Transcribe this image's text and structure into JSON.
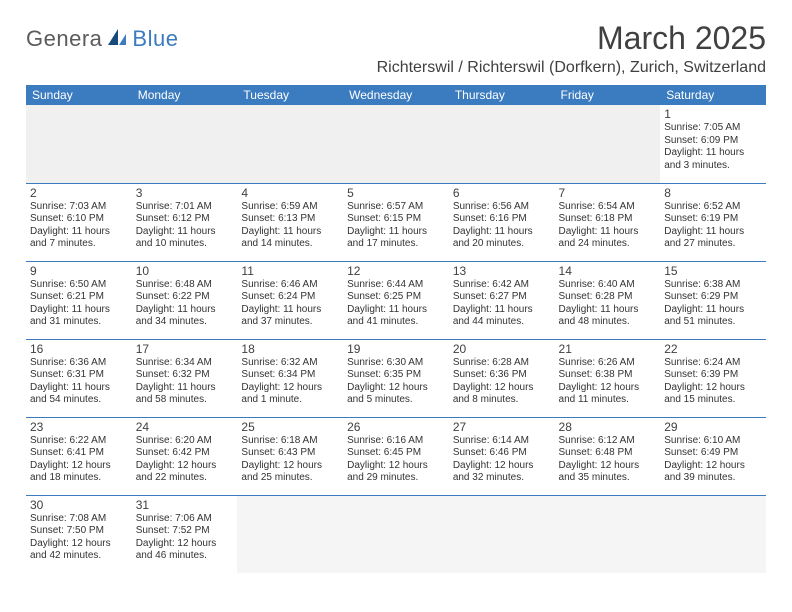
{
  "logo": {
    "part1": "Genera",
    "part2": "Blue"
  },
  "title": "March 2025",
  "location": "Richterswil / Richterswil (Dorfkern), Zurich, Switzerland",
  "colors": {
    "header_bg": "#3b7bbf",
    "header_fg": "#ffffff",
    "rule": "#3b7bbf",
    "text": "#333333",
    "logo_gray": "#5b5b5b",
    "logo_blue": "#3b7bbf"
  },
  "day_headers": [
    "Sunday",
    "Monday",
    "Tuesday",
    "Wednesday",
    "Thursday",
    "Friday",
    "Saturday"
  ],
  "weeks": [
    [
      null,
      null,
      null,
      null,
      null,
      null,
      {
        "n": "1",
        "sr": "7:05 AM",
        "ss": "6:09 PM",
        "dl": "11 hours and 3 minutes."
      }
    ],
    [
      {
        "n": "2",
        "sr": "7:03 AM",
        "ss": "6:10 PM",
        "dl": "11 hours and 7 minutes."
      },
      {
        "n": "3",
        "sr": "7:01 AM",
        "ss": "6:12 PM",
        "dl": "11 hours and 10 minutes."
      },
      {
        "n": "4",
        "sr": "6:59 AM",
        "ss": "6:13 PM",
        "dl": "11 hours and 14 minutes."
      },
      {
        "n": "5",
        "sr": "6:57 AM",
        "ss": "6:15 PM",
        "dl": "11 hours and 17 minutes."
      },
      {
        "n": "6",
        "sr": "6:56 AM",
        "ss": "6:16 PM",
        "dl": "11 hours and 20 minutes."
      },
      {
        "n": "7",
        "sr": "6:54 AM",
        "ss": "6:18 PM",
        "dl": "11 hours and 24 minutes."
      },
      {
        "n": "8",
        "sr": "6:52 AM",
        "ss": "6:19 PM",
        "dl": "11 hours and 27 minutes."
      }
    ],
    [
      {
        "n": "9",
        "sr": "6:50 AM",
        "ss": "6:21 PM",
        "dl": "11 hours and 31 minutes."
      },
      {
        "n": "10",
        "sr": "6:48 AM",
        "ss": "6:22 PM",
        "dl": "11 hours and 34 minutes."
      },
      {
        "n": "11",
        "sr": "6:46 AM",
        "ss": "6:24 PM",
        "dl": "11 hours and 37 minutes."
      },
      {
        "n": "12",
        "sr": "6:44 AM",
        "ss": "6:25 PM",
        "dl": "11 hours and 41 minutes."
      },
      {
        "n": "13",
        "sr": "6:42 AM",
        "ss": "6:27 PM",
        "dl": "11 hours and 44 minutes."
      },
      {
        "n": "14",
        "sr": "6:40 AM",
        "ss": "6:28 PM",
        "dl": "11 hours and 48 minutes."
      },
      {
        "n": "15",
        "sr": "6:38 AM",
        "ss": "6:29 PM",
        "dl": "11 hours and 51 minutes."
      }
    ],
    [
      {
        "n": "16",
        "sr": "6:36 AM",
        "ss": "6:31 PM",
        "dl": "11 hours and 54 minutes."
      },
      {
        "n": "17",
        "sr": "6:34 AM",
        "ss": "6:32 PM",
        "dl": "11 hours and 58 minutes."
      },
      {
        "n": "18",
        "sr": "6:32 AM",
        "ss": "6:34 PM",
        "dl": "12 hours and 1 minute."
      },
      {
        "n": "19",
        "sr": "6:30 AM",
        "ss": "6:35 PM",
        "dl": "12 hours and 5 minutes."
      },
      {
        "n": "20",
        "sr": "6:28 AM",
        "ss": "6:36 PM",
        "dl": "12 hours and 8 minutes."
      },
      {
        "n": "21",
        "sr": "6:26 AM",
        "ss": "6:38 PM",
        "dl": "12 hours and 11 minutes."
      },
      {
        "n": "22",
        "sr": "6:24 AM",
        "ss": "6:39 PM",
        "dl": "12 hours and 15 minutes."
      }
    ],
    [
      {
        "n": "23",
        "sr": "6:22 AM",
        "ss": "6:41 PM",
        "dl": "12 hours and 18 minutes."
      },
      {
        "n": "24",
        "sr": "6:20 AM",
        "ss": "6:42 PM",
        "dl": "12 hours and 22 minutes."
      },
      {
        "n": "25",
        "sr": "6:18 AM",
        "ss": "6:43 PM",
        "dl": "12 hours and 25 minutes."
      },
      {
        "n": "26",
        "sr": "6:16 AM",
        "ss": "6:45 PM",
        "dl": "12 hours and 29 minutes."
      },
      {
        "n": "27",
        "sr": "6:14 AM",
        "ss": "6:46 PM",
        "dl": "12 hours and 32 minutes."
      },
      {
        "n": "28",
        "sr": "6:12 AM",
        "ss": "6:48 PM",
        "dl": "12 hours and 35 minutes."
      },
      {
        "n": "29",
        "sr": "6:10 AM",
        "ss": "6:49 PM",
        "dl": "12 hours and 39 minutes."
      }
    ],
    [
      {
        "n": "30",
        "sr": "7:08 AM",
        "ss": "7:50 PM",
        "dl": "12 hours and 42 minutes."
      },
      {
        "n": "31",
        "sr": "7:06 AM",
        "ss": "7:52 PM",
        "dl": "12 hours and 46 minutes."
      },
      null,
      null,
      null,
      null,
      null
    ]
  ],
  "labels": {
    "sunrise": "Sunrise:",
    "sunset": "Sunset:",
    "daylight": "Daylight:"
  }
}
